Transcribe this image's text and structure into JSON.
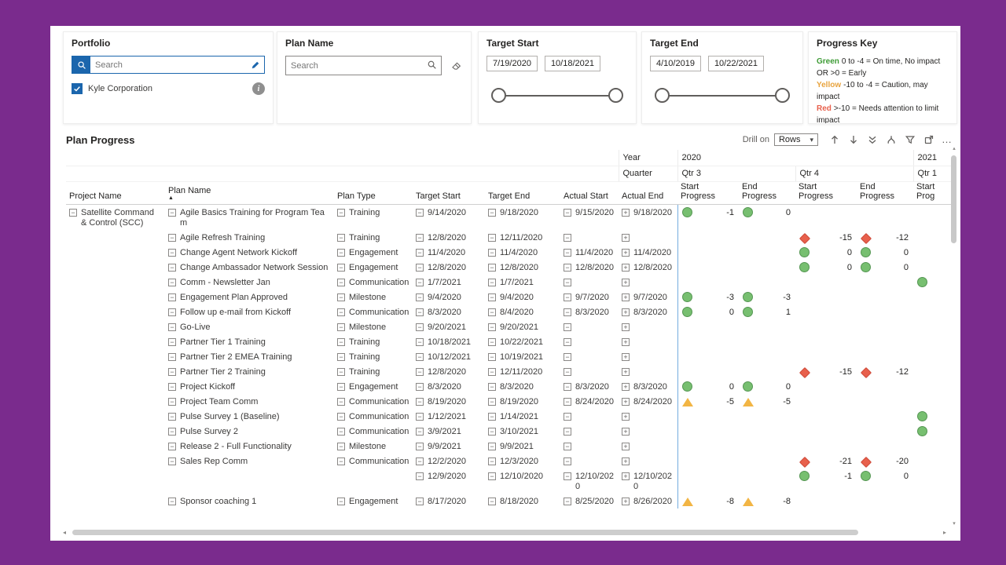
{
  "colors": {
    "frame_purple": "#7A2B8D",
    "slicer_blue": "#1B66AD",
    "divider_blue": "#74ACDF",
    "marker_green": "#77BF70",
    "marker_yellow": "#F2B544",
    "marker_red": "#E8604C",
    "key_green": "#3D9B35",
    "key_yellow": "#E8A33D",
    "key_red": "#E8604C"
  },
  "icons": {
    "search": "magnifier",
    "apply": "pencil",
    "clear": "eraser",
    "info": "info-circle",
    "sort": "triangle-up",
    "collapse": "minus-box",
    "expand": "plus-box",
    "toolbar": [
      "drill-up",
      "drill-down",
      "go-to-next-level",
      "expand-all",
      "filter",
      "focus-mode",
      "more-options"
    ]
  },
  "filters": {
    "portfolio": {
      "title": "Portfolio",
      "search_placeholder": "Search",
      "items": [
        {
          "label": "Kyle Corporation",
          "checked": true
        }
      ]
    },
    "plan_name": {
      "title": "Plan Name",
      "search_placeholder": "Search"
    },
    "target_start": {
      "title": "Target Start",
      "from": "7/19/2020",
      "to": "10/18/2021"
    },
    "target_end": {
      "title": "Target End",
      "from": "4/10/2019",
      "to": "10/22/2021"
    },
    "progress_key": {
      "title": "Progress Key",
      "entries": [
        {
          "label": "Green",
          "text": "0 to -4 = On time, No impact OR >0 = Early"
        },
        {
          "label": "Yellow",
          "text": "-10 to -4 = Caution, may impact"
        },
        {
          "label": "Red",
          "text": ">-10 =  Needs attention to limit impact"
        }
      ]
    }
  },
  "matrix": {
    "title": "Plan Progress",
    "drill_on_label": "Drill on",
    "drill_on_value": "Rows",
    "year_label": "Year",
    "quarter_label": "Quarter",
    "years": [
      "2020",
      "2021"
    ],
    "quarters": [
      "Qtr 3",
      "Qtr 4",
      "Qtr 1"
    ],
    "columns": [
      "Project Name",
      "Plan Name",
      "Plan Type",
      "Target Start",
      "Target End",
      "Actual Start",
      "Actual End"
    ],
    "progress_columns": [
      "Start Progress",
      "End Progress",
      "Start Progress",
      "End Progress",
      "Start Prog"
    ],
    "project": "Satellite Command & Control (SCC)",
    "rows": [
      {
        "plan": "Agile Basics Training for Program Team",
        "type": "Training",
        "target_start": "9/14/2020",
        "target_end": "9/18/2020",
        "actual_start": "9/15/2020",
        "actual_end": "9/18/2020",
        "progress": [
          {
            "shape": "circle",
            "value": "-1"
          },
          {
            "shape": "circle",
            "value": "0"
          },
          null,
          null,
          null
        ]
      },
      {
        "plan": "Agile Refresh Training",
        "type": "Training",
        "target_start": "12/8/2020",
        "target_end": "12/11/2020",
        "actual_start": "",
        "actual_end": "",
        "progress": [
          null,
          null,
          {
            "shape": "diamond",
            "value": "-15"
          },
          {
            "shape": "diamond",
            "value": "-12"
          },
          null
        ]
      },
      {
        "plan": "Change Agent Network Kickoff",
        "type": "Engagement",
        "target_start": "11/4/2020",
        "target_end": "11/4/2020",
        "actual_start": "11/4/2020",
        "actual_end": "11/4/2020",
        "progress": [
          null,
          null,
          {
            "shape": "circle",
            "value": "0"
          },
          {
            "shape": "circle",
            "value": "0"
          },
          null
        ]
      },
      {
        "plan": "Change Ambassador Network Session",
        "type": "Engagement",
        "target_start": "12/8/2020",
        "target_end": "12/8/2020",
        "actual_start": "12/8/2020",
        "actual_end": "12/8/2020",
        "progress": [
          null,
          null,
          {
            "shape": "circle",
            "value": "0"
          },
          {
            "shape": "circle",
            "value": "0"
          },
          null
        ]
      },
      {
        "plan": "Comm - Newsletter Jan",
        "type": "Communication",
        "target_start": "1/7/2021",
        "target_end": "1/7/2021",
        "actual_start": "",
        "actual_end": "",
        "progress": [
          null,
          null,
          null,
          null,
          {
            "shape": "circle",
            "value": ""
          }
        ]
      },
      {
        "plan": "Engagement Plan Approved",
        "type": "Milestone",
        "target_start": "9/4/2020",
        "target_end": "9/4/2020",
        "actual_start": "9/7/2020",
        "actual_end": "9/7/2020",
        "progress": [
          {
            "shape": "circle",
            "value": "-3"
          },
          {
            "shape": "circle",
            "value": "-3"
          },
          null,
          null,
          null
        ]
      },
      {
        "plan": "Follow up e-mail from Kickoff",
        "type": "Communication",
        "target_start": "8/3/2020",
        "target_end": "8/4/2020",
        "actual_start": "8/3/2020",
        "actual_end": "8/3/2020",
        "progress": [
          {
            "shape": "circle",
            "value": "0"
          },
          {
            "shape": "circle",
            "value": "1"
          },
          null,
          null,
          null
        ]
      },
      {
        "plan": "Go-Live",
        "type": "Milestone",
        "target_start": "9/20/2021",
        "target_end": "9/20/2021",
        "actual_start": "",
        "actual_end": "",
        "progress": [
          null,
          null,
          null,
          null,
          null
        ]
      },
      {
        "plan": "Partner Tier 1 Training",
        "type": "Training",
        "target_start": "10/18/2021",
        "target_end": "10/22/2021",
        "actual_start": "",
        "actual_end": "",
        "progress": [
          null,
          null,
          null,
          null,
          null
        ]
      },
      {
        "plan": "Partner Tier 2 EMEA Training",
        "type": "Training",
        "target_start": "10/12/2021",
        "target_end": "10/19/2021",
        "actual_start": "",
        "actual_end": "",
        "progress": [
          null,
          null,
          null,
          null,
          null
        ]
      },
      {
        "plan": "Partner Tier 2 Training",
        "type": "Training",
        "target_start": "12/8/2020",
        "target_end": "12/11/2020",
        "actual_start": "",
        "actual_end": "",
        "progress": [
          null,
          null,
          {
            "shape": "diamond",
            "value": "-15"
          },
          {
            "shape": "diamond",
            "value": "-12"
          },
          null
        ]
      },
      {
        "plan": "Project Kickoff",
        "type": "Engagement",
        "target_start": "8/3/2020",
        "target_end": "8/3/2020",
        "actual_start": "8/3/2020",
        "actual_end": "8/3/2020",
        "progress": [
          {
            "shape": "circle",
            "value": "0"
          },
          {
            "shape": "circle",
            "value": "0"
          },
          null,
          null,
          null
        ]
      },
      {
        "plan": "Project Team Comm",
        "type": "Communication",
        "target_start": "8/19/2020",
        "target_end": "8/19/2020",
        "actual_start": "8/24/2020",
        "actual_end": "8/24/2020",
        "progress": [
          {
            "shape": "triangle",
            "value": "-5"
          },
          {
            "shape": "triangle",
            "value": "-5"
          },
          null,
          null,
          null
        ]
      },
      {
        "plan": "Pulse Survey 1 (Baseline)",
        "type": "Communication",
        "target_start": "1/12/2021",
        "target_end": "1/14/2021",
        "actual_start": "",
        "actual_end": "",
        "progress": [
          null,
          null,
          null,
          null,
          {
            "shape": "circle",
            "value": ""
          }
        ]
      },
      {
        "plan": "Pulse Survey 2",
        "type": "Communication",
        "target_start": "3/9/2021",
        "target_end": "3/10/2021",
        "actual_start": "",
        "actual_end": "",
        "progress": [
          null,
          null,
          null,
          null,
          {
            "shape": "circle",
            "value": ""
          }
        ]
      },
      {
        "plan": "Release 2 - Full Functionality",
        "type": "Milestone",
        "target_start": "9/9/2021",
        "target_end": "9/9/2021",
        "actual_start": "",
        "actual_end": "",
        "progress": [
          null,
          null,
          null,
          null,
          null
        ]
      },
      {
        "plan": "Sales Rep Comm",
        "type": "Communication",
        "target_start": "12/2/2020",
        "target_end": "12/3/2020",
        "actual_start": "",
        "actual_end": "",
        "progress": [
          null,
          null,
          {
            "shape": "diamond",
            "value": "-21"
          },
          {
            "shape": "diamond",
            "value": "-20"
          },
          null
        ]
      },
      {
        "plan": null,
        "type": null,
        "target_start": "12/9/2020",
        "target_end": "12/10/2020",
        "actual_start": "12/10/2020",
        "actual_end": "12/10/2020",
        "progress": [
          null,
          null,
          {
            "shape": "circle",
            "value": "-1"
          },
          {
            "shape": "circle",
            "value": "0"
          },
          null
        ]
      },
      {
        "plan": "Sponsor coaching 1",
        "type": "Engagement",
        "target_start": "8/17/2020",
        "target_end": "8/18/2020",
        "actual_start": "8/25/2020",
        "actual_end": "8/26/2020",
        "progress": [
          {
            "shape": "triangle",
            "value": "-8"
          },
          {
            "shape": "triangle",
            "value": "-8"
          },
          null,
          null,
          null
        ]
      }
    ]
  }
}
